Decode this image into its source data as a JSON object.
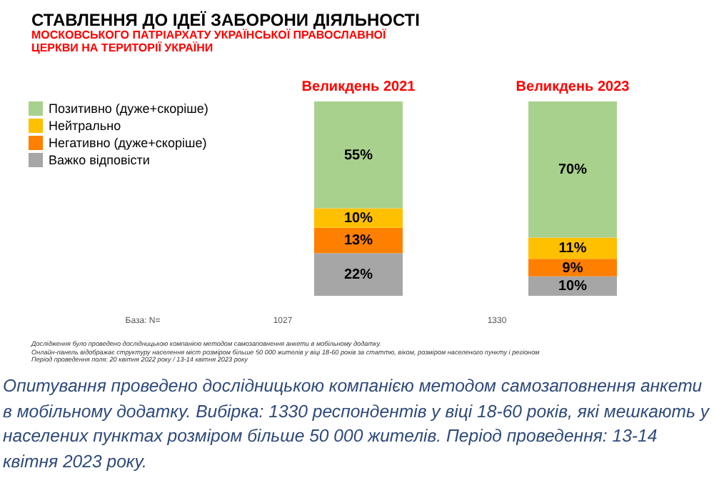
{
  "chart_data": {
    "type": "bar",
    "title": "СТАВЛЕННЯ ДО ІДЕЇ ЗАБОРОНИ ДІЯЛЬНОСТІ",
    "subtitle": "МОСКОВСЬКОГО ПАТРІАРХАТУ УКРАЇНСЬКОЇ ПРАВОСЛАВНОЇ ЦЕРКВИ НА ТЕРИТОРІЇ УКРАЇНИ",
    "categories": [
      "Великдень 2021",
      "Великдень 2023"
    ],
    "stacked": true,
    "legend": "left",
    "series": [
      {
        "name": "Важко відповісти",
        "color": "#a6a6a6",
        "values": [
          22,
          10
        ],
        "value_labels": [
          "22%",
          "10%"
        ]
      },
      {
        "name": "Негативно (дуже+скоріше)",
        "color": "#ff7f00",
        "values": [
          13,
          9
        ],
        "value_labels": [
          "13%",
          "9%"
        ]
      },
      {
        "name": "Нейтрально",
        "color": "#ffc000",
        "values": [
          10,
          11
        ],
        "value_labels": [
          "10%",
          "11%"
        ]
      },
      {
        "name": "Позитивно (дуже+скоріше)",
        "color": "#a9d18e",
        "values": [
          55,
          70
        ],
        "value_labels": [
          "55%",
          "70%"
        ]
      }
    ],
    "annotations": [
      "База: N=",
      "1027",
      "1330",
      "Дослідження було проведено дослідницькою компанією методом самозаповнення анкети в мобільному додатку.",
      "Онлайн-панель відображає структуру населення міст розміром більше 50 000 жителів у віці 18-60 років за статтю, віком, розміром населеного пункту і регіоном",
      "Період проведення поля: 20 квітня 2022 року / 13-14 квітня 2023 року",
      "Опитування проведено дослідницькою компанією методом самозаповнення анкети в мобільному додатку. Вибірка: 1330 респондентів у віці 18-60 років, які мешкають у населених пунктах розміром більше 50 000 жителів. Період проведення: 13-14 квітня 2023 року."
    ]
  }
}
